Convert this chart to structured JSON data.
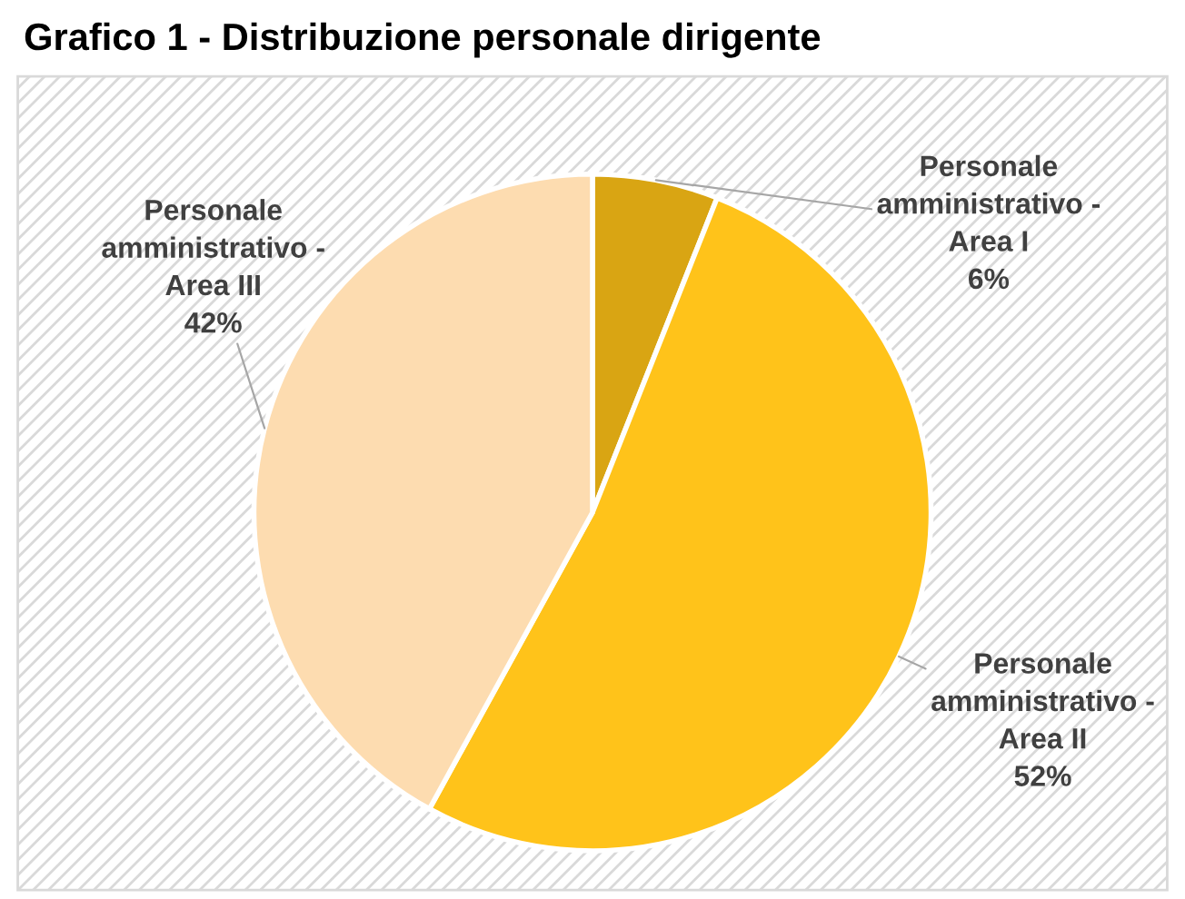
{
  "chart_data": {
    "type": "pie",
    "title": "Grafico 1 - Distribuzione personale dirigente",
    "categories": [
      "Personale amministrativo - Area I",
      "Personale amministrativo - Area II",
      "Personale amministrativo - Area III"
    ],
    "values": [
      6,
      52,
      42
    ],
    "colors": [
      "#d9a513",
      "#ffc31a",
      "#fddcb0"
    ],
    "value_labels": [
      "6%",
      "52%",
      "42%"
    ],
    "legend": false
  }
}
